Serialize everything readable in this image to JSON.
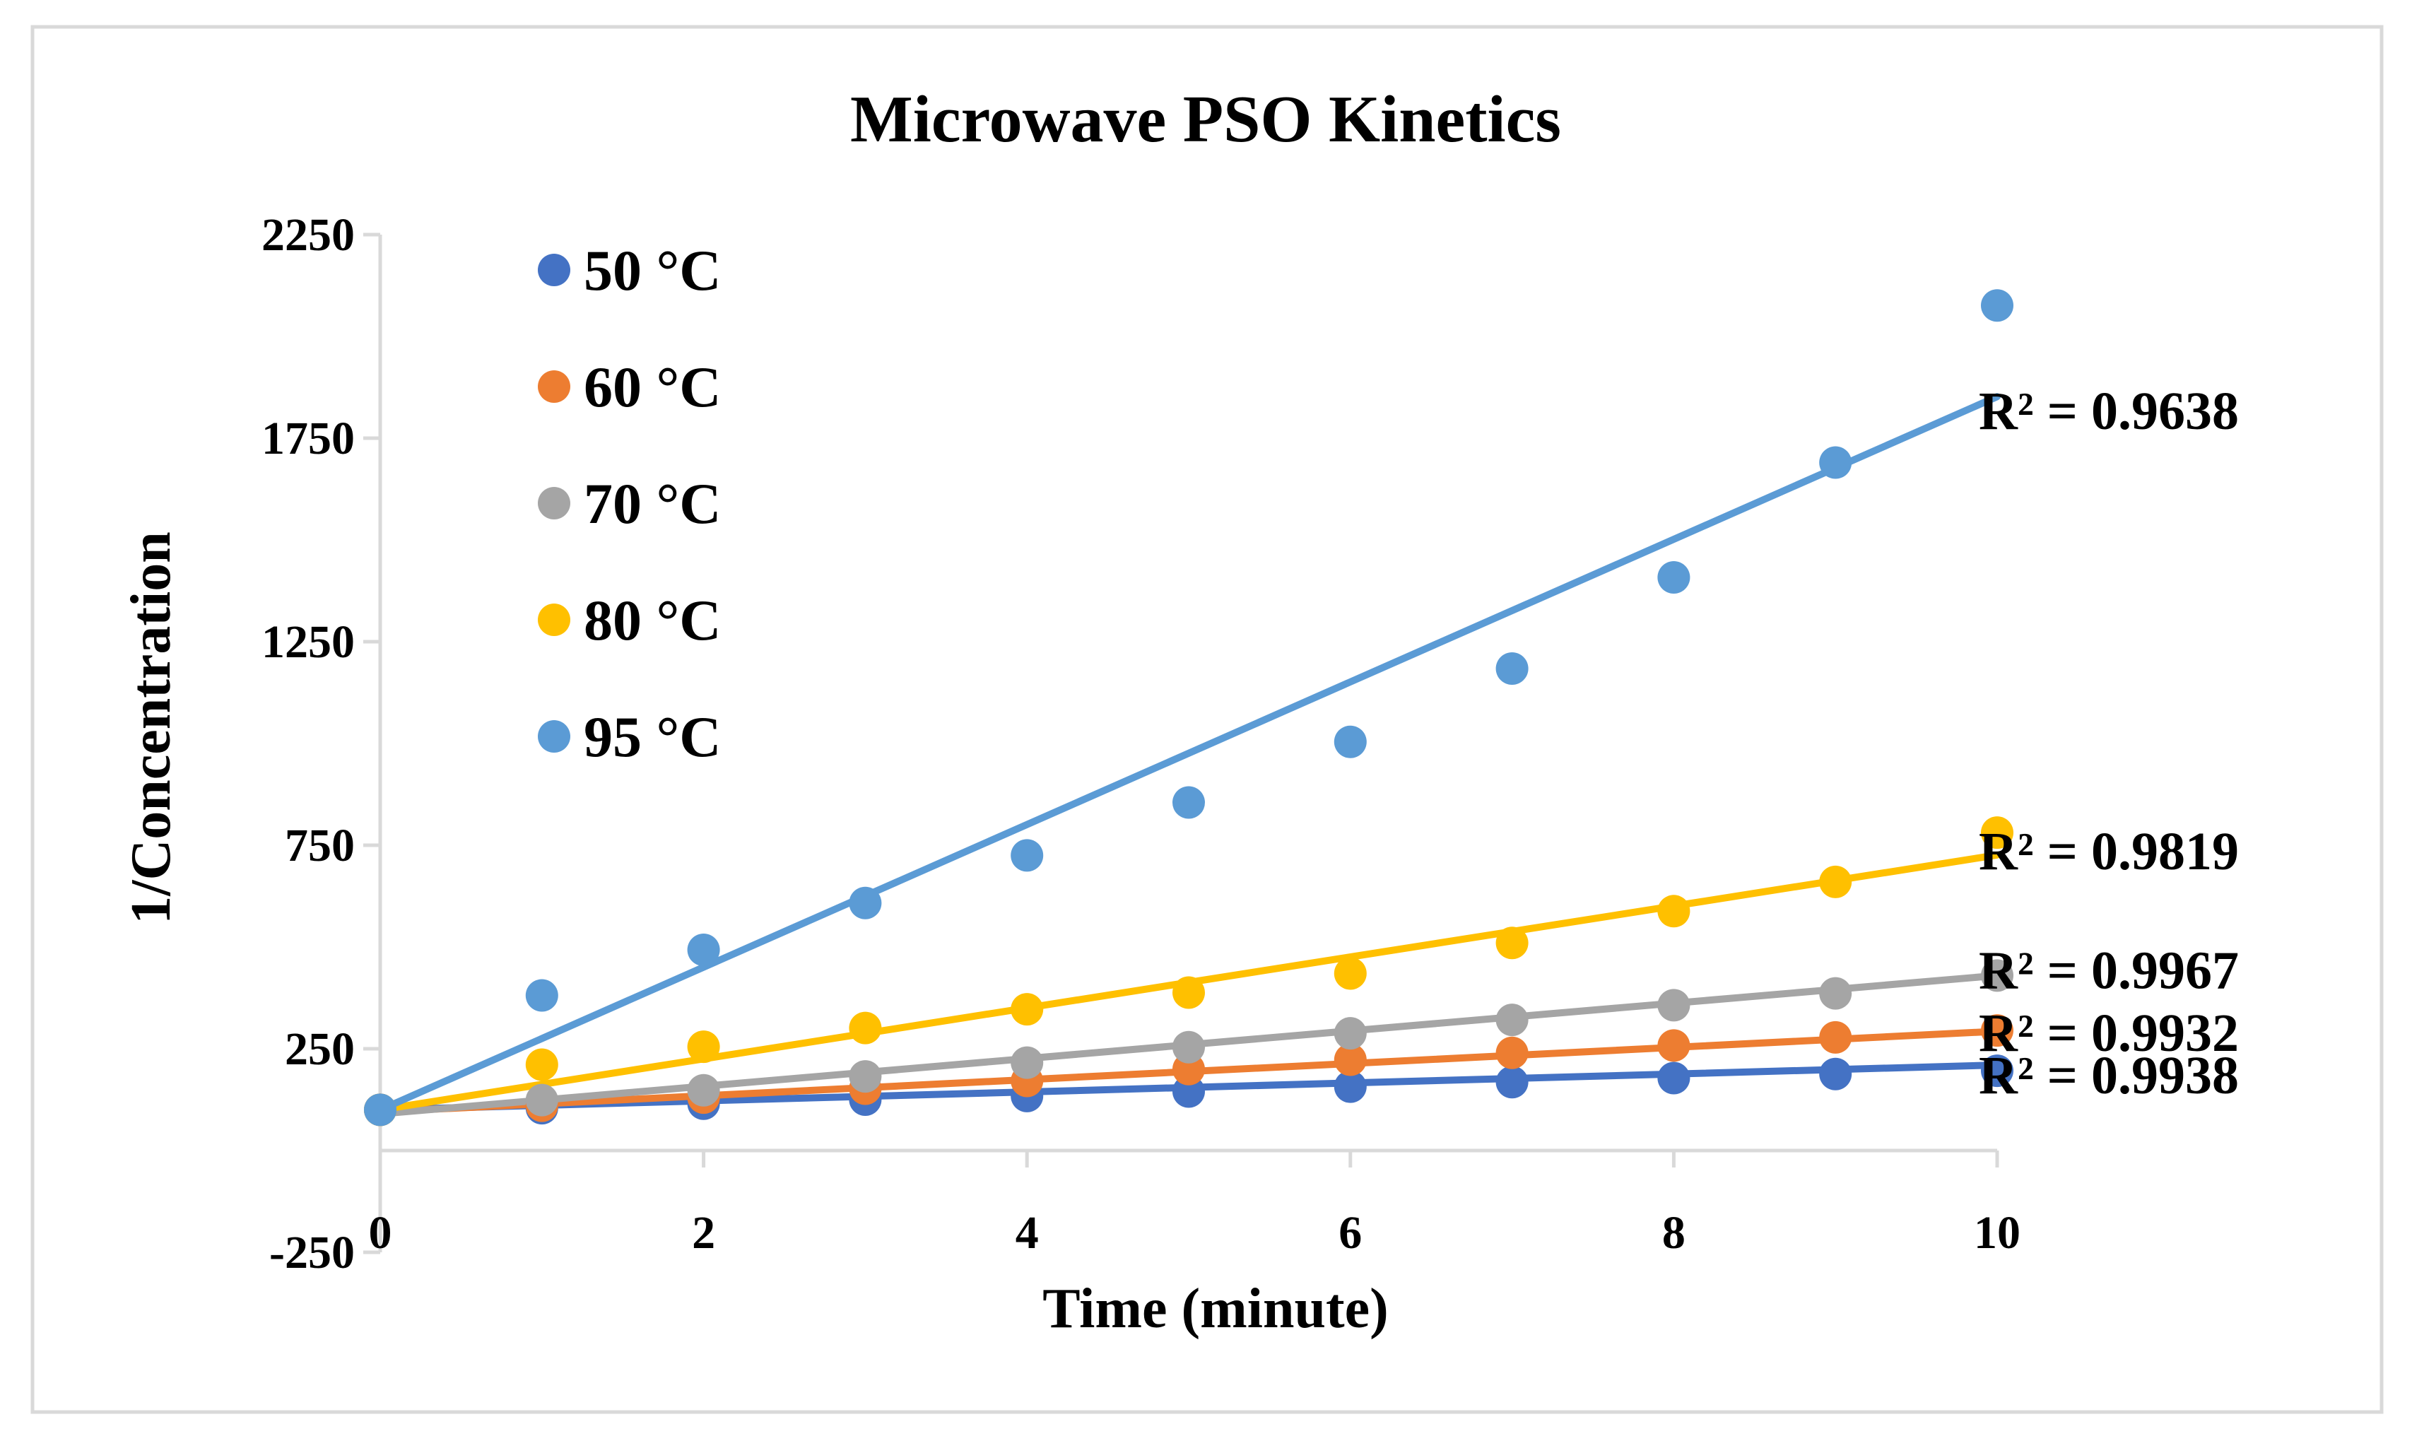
{
  "chart_data": {
    "type": "scatter",
    "title": "Microwave PSO Kinetics",
    "xlabel": "Time (minute)",
    "ylabel": "1/Concentration",
    "xlim": [
      0,
      10
    ],
    "ylim": [
      -250,
      2250
    ],
    "x_ticks": [
      "0",
      "2",
      "4",
      "6",
      "8",
      "10"
    ],
    "y_ticks": [
      "-250",
      "250",
      "750",
      "1250",
      "1750",
      "2250"
    ],
    "x": [
      0,
      1,
      2,
      3,
      4,
      5,
      6,
      7,
      8,
      9,
      10
    ],
    "legend_position": "top-left",
    "grid": false,
    "series": [
      {
        "name": "50 °C",
        "color": "#4472C4",
        "values": [
          100,
          104,
          115,
          125,
          134,
          145,
          157,
          168,
          178,
          188,
          196
        ],
        "trendline": [
          100,
          210
        ],
        "r2_label": "R² = 0.9938"
      },
      {
        "name": "60 °C",
        "color": "#ED7D31",
        "values": [
          100,
          110,
          130,
          152,
          171,
          200,
          223,
          240,
          258,
          278,
          295
        ],
        "trendline": [
          95,
          293
        ],
        "r2_label": "R² = 0.9932"
      },
      {
        "name": "70 °C",
        "color": "#A5A5A5",
        "values": [
          100,
          124,
          148,
          182,
          216,
          254,
          288,
          321,
          357,
          386,
          430
        ],
        "trendline": [
          90,
          430
        ],
        "r2_label": "R² = 0.9967"
      },
      {
        "name": "80 °C",
        "color": "#FFC000",
        "values": [
          100,
          211,
          255,
          301,
          347,
          388,
          435,
          510,
          588,
          660,
          781
        ],
        "trendline": [
          100,
          726
        ],
        "r2_label": "R² = 0.9819"
      },
      {
        "name": "95 °C",
        "color": "#5B9BD5",
        "values": [
          100,
          381,
          493,
          608,
          725,
          855,
          1004,
          1184,
          1408,
          1690,
          2076
        ],
        "trendline": [
          100,
          1852
        ],
        "r2_label": "R² = 0.9638"
      }
    ]
  }
}
